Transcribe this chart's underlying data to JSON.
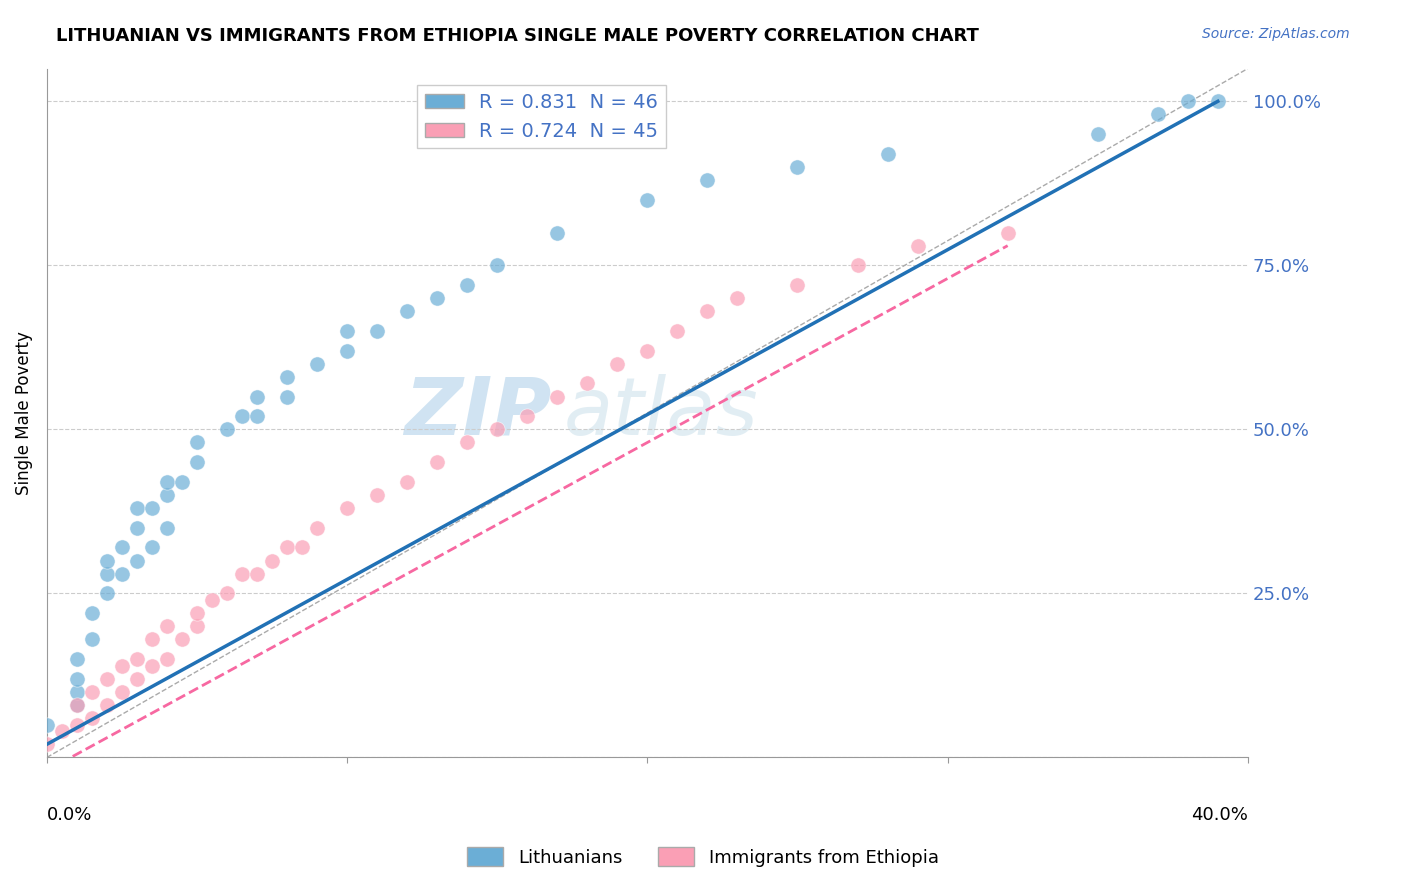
{
  "title": "LITHUANIAN VS IMMIGRANTS FROM ETHIOPIA SINGLE MALE POVERTY CORRELATION CHART",
  "source_text": "Source: ZipAtlas.com",
  "ylabel": "Single Male Poverty",
  "x_min": 0.0,
  "x_max": 0.4,
  "y_min": 0.0,
  "y_max": 1.05,
  "y_ticks": [
    0.0,
    0.25,
    0.5,
    0.75,
    1.0
  ],
  "y_tick_labels": [
    "",
    "25.0%",
    "50.0%",
    "75.0%",
    "100.0%"
  ],
  "legend_r1": "R = 0.831  N = 46",
  "legend_r2": "R = 0.724  N = 45",
  "blue_color": "#6baed6",
  "pink_color": "#fa9fb5",
  "blue_line_color": "#2171b5",
  "pink_line_color": "#f768a1",
  "watermark_zip": "ZIP",
  "watermark_atlas": "atlas",
  "blue_scatter_x": [
    0.0,
    0.01,
    0.01,
    0.01,
    0.01,
    0.015,
    0.015,
    0.02,
    0.02,
    0.02,
    0.025,
    0.025,
    0.03,
    0.03,
    0.03,
    0.035,
    0.035,
    0.04,
    0.04,
    0.04,
    0.045,
    0.05,
    0.05,
    0.06,
    0.065,
    0.07,
    0.07,
    0.08,
    0.08,
    0.09,
    0.1,
    0.1,
    0.11,
    0.12,
    0.13,
    0.14,
    0.15,
    0.17,
    0.2,
    0.22,
    0.25,
    0.28,
    0.35,
    0.37,
    0.38,
    0.39
  ],
  "blue_scatter_y": [
    0.05,
    0.08,
    0.1,
    0.12,
    0.15,
    0.18,
    0.22,
    0.25,
    0.28,
    0.3,
    0.28,
    0.32,
    0.3,
    0.35,
    0.38,
    0.32,
    0.38,
    0.35,
    0.4,
    0.42,
    0.42,
    0.45,
    0.48,
    0.5,
    0.52,
    0.52,
    0.55,
    0.55,
    0.58,
    0.6,
    0.62,
    0.65,
    0.65,
    0.68,
    0.7,
    0.72,
    0.75,
    0.8,
    0.85,
    0.88,
    0.9,
    0.92,
    0.95,
    0.98,
    1.0,
    1.0
  ],
  "pink_scatter_x": [
    0.0,
    0.005,
    0.01,
    0.01,
    0.015,
    0.015,
    0.02,
    0.02,
    0.025,
    0.025,
    0.03,
    0.03,
    0.035,
    0.035,
    0.04,
    0.04,
    0.045,
    0.05,
    0.05,
    0.055,
    0.06,
    0.065,
    0.07,
    0.075,
    0.08,
    0.085,
    0.09,
    0.1,
    0.11,
    0.12,
    0.13,
    0.14,
    0.15,
    0.16,
    0.17,
    0.18,
    0.19,
    0.2,
    0.21,
    0.22,
    0.23,
    0.25,
    0.27,
    0.29,
    0.32
  ],
  "pink_scatter_y": [
    0.02,
    0.04,
    0.05,
    0.08,
    0.06,
    0.1,
    0.08,
    0.12,
    0.1,
    0.14,
    0.12,
    0.15,
    0.14,
    0.18,
    0.15,
    0.2,
    0.18,
    0.2,
    0.22,
    0.24,
    0.25,
    0.28,
    0.28,
    0.3,
    0.32,
    0.32,
    0.35,
    0.38,
    0.4,
    0.42,
    0.45,
    0.48,
    0.5,
    0.52,
    0.55,
    0.57,
    0.6,
    0.62,
    0.65,
    0.68,
    0.7,
    0.72,
    0.75,
    0.78,
    0.8
  ],
  "blue_line_x": [
    0.0,
    0.39
  ],
  "blue_line_y": [
    0.02,
    1.0
  ],
  "pink_line_x": [
    0.0,
    0.32
  ],
  "pink_line_y": [
    -0.02,
    0.78
  ],
  "diag_line_x": [
    0.0,
    0.4
  ],
  "diag_line_y": [
    0.0,
    1.05
  ],
  "grid_color": "#cccccc",
  "diag_color": "#aaaaaa"
}
